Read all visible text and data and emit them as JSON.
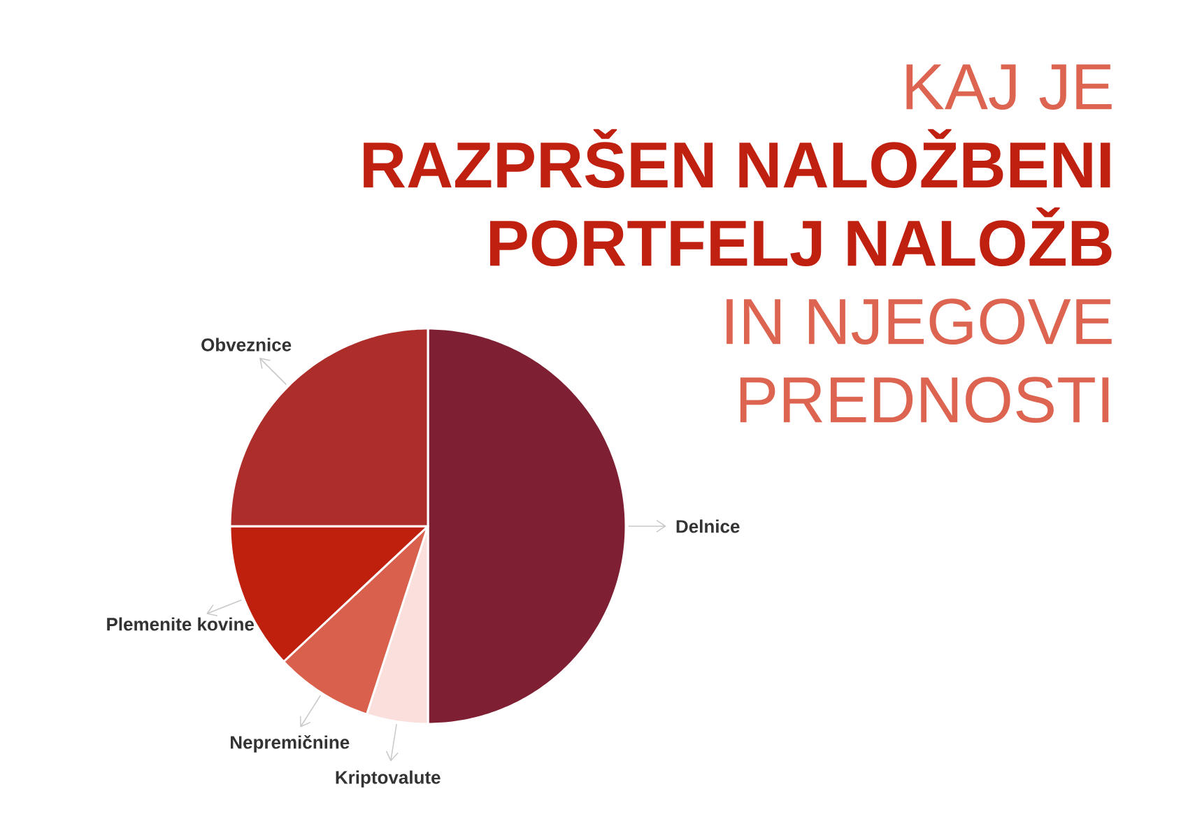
{
  "chart_data": {
    "type": "pie",
    "title": "KAJ JE **RAZPRŠEN NALOŽBENI PORTFELJ NALOŽB** IN NJEGOVE PREDNOSTI",
    "categories": [
      "Delnice",
      "Kriptovalute",
      "Nepremičnine",
      "Plemenite kovine",
      "Obveznice"
    ],
    "values": [
      50,
      5,
      8,
      12,
      25
    ],
    "colors": [
      "#7e1f33",
      "#fadfdd",
      "#d9604d",
      "#bf200e",
      "#ad2d2a"
    ]
  }
}
